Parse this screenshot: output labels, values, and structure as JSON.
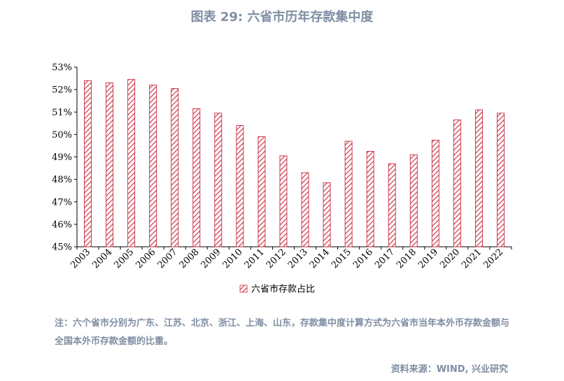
{
  "title": "图表 29: 六省市历年存款集中度",
  "note": "注：六个省市分别为广东、江苏、北京、浙江、上海、山东，存款集中度计算方式为六省市当年本外币存款金额与全国本外币存款金额的比重。",
  "source": "资料来源：WIND, 兴业研究",
  "colors": {
    "bar_stroke": "#c8283c",
    "text": "#7f8ea3"
  },
  "chart_data": {
    "type": "bar",
    "categories": [
      "2003",
      "2004",
      "2005",
      "2006",
      "2007",
      "2008",
      "2009",
      "2010",
      "2011",
      "2012",
      "2013",
      "2014",
      "2015",
      "2016",
      "2017",
      "2018",
      "2019",
      "2020",
      "2021",
      "2022"
    ],
    "series": [
      {
        "name": "六省市存款占比",
        "values": [
          52.4,
          52.3,
          52.45,
          52.2,
          52.05,
          51.15,
          50.95,
          50.4,
          49.9,
          49.05,
          48.3,
          47.85,
          49.7,
          49.25,
          48.7,
          49.1,
          49.75,
          50.65,
          51.1,
          50.95
        ]
      }
    ],
    "y_ticks": [
      "53%",
      "52%",
      "51%",
      "50%",
      "49%",
      "48%",
      "47%",
      "46%",
      "45%"
    ],
    "ylim": [
      45,
      53
    ],
    "legend": "bottom-center"
  }
}
